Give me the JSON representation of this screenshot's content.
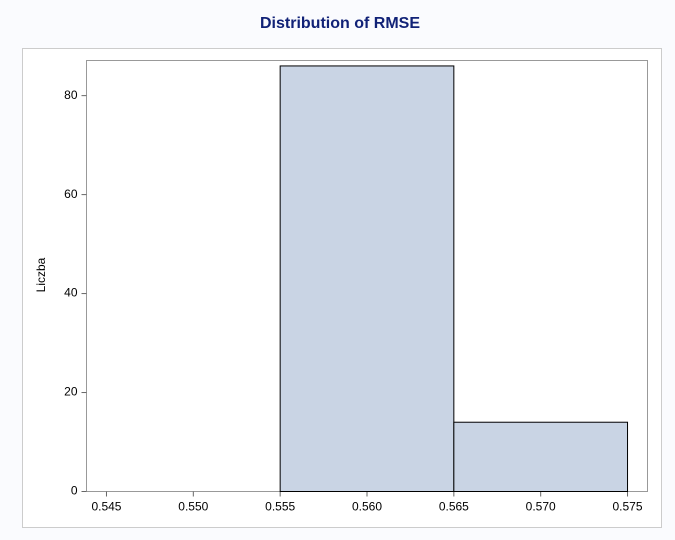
{
  "chart_data": {
    "type": "histogram",
    "title": "Distribution of RMSE",
    "ylabel": "Liczba",
    "bins": [
      0.545,
      0.555,
      0.565,
      0.575
    ],
    "values": [
      0,
      86,
      14
    ],
    "color": "#c9d4e4",
    "xlim": [
      0.54385,
      0.57615
    ],
    "ylim": [
      0,
      87.1
    ],
    "xticks": [
      0.545,
      {
        "value": 0.55,
        "label": "0.550"
      },
      0.555,
      {
        "value": 0.56,
        "label": "0.560"
      },
      0.565,
      {
        "value": 0.57,
        "label": "0.570"
      },
      0.575
    ],
    "yticks": [
      0,
      20,
      40,
      60,
      80
    ]
  }
}
